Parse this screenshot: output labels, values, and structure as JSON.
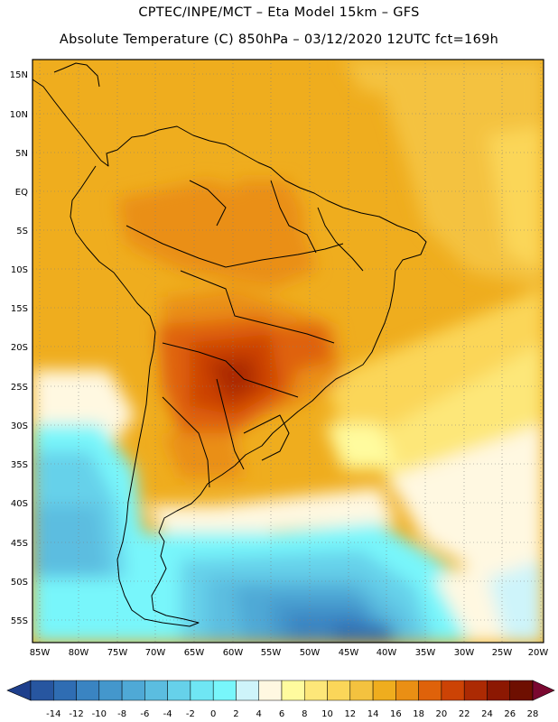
{
  "header": {
    "line1": "CPTEC/INPE/MCT –  Eta Model 15km – GFS",
    "line2": "Absolute Temperature (C) 850hPa – 03/12/2020 12UTC fct=169h"
  },
  "map": {
    "lat_labels": [
      "15N",
      "10N",
      "5N",
      "EQ",
      "5S",
      "10S",
      "15S",
      "20S",
      "25S",
      "30S",
      "35S",
      "40S",
      "45S",
      "50S",
      "55S"
    ],
    "lon_labels": [
      "85W",
      "80W",
      "75W",
      "70W",
      "65W",
      "60W",
      "55W",
      "50W",
      "45W",
      "40W",
      "35W",
      "30W",
      "25W",
      "20W"
    ]
  },
  "colorbar": {
    "ticks": [
      "-14",
      "-12",
      "-10",
      "-8",
      "-6",
      "-4",
      "-2",
      "0",
      "2",
      "4",
      "6",
      "8",
      "10",
      "12",
      "14",
      "16",
      "18",
      "20",
      "22",
      "24",
      "26",
      "28"
    ],
    "colors": [
      "#1e3f8c",
      "#2756a0",
      "#2f6db3",
      "#3a84c2",
      "#4497cc",
      "#4fa9d6",
      "#5bbde0",
      "#66d1ea",
      "#6fe6f4",
      "#78f6fb",
      "#cef4fa",
      "#fff8e1",
      "#fffb9e",
      "#fde779",
      "#fbd659",
      "#f4c23f",
      "#efad1e",
      "#ea8f14",
      "#df620a",
      "#cc4305",
      "#ac2a03",
      "#8c1802",
      "#6e0f01",
      "#7a0830"
    ]
  }
}
